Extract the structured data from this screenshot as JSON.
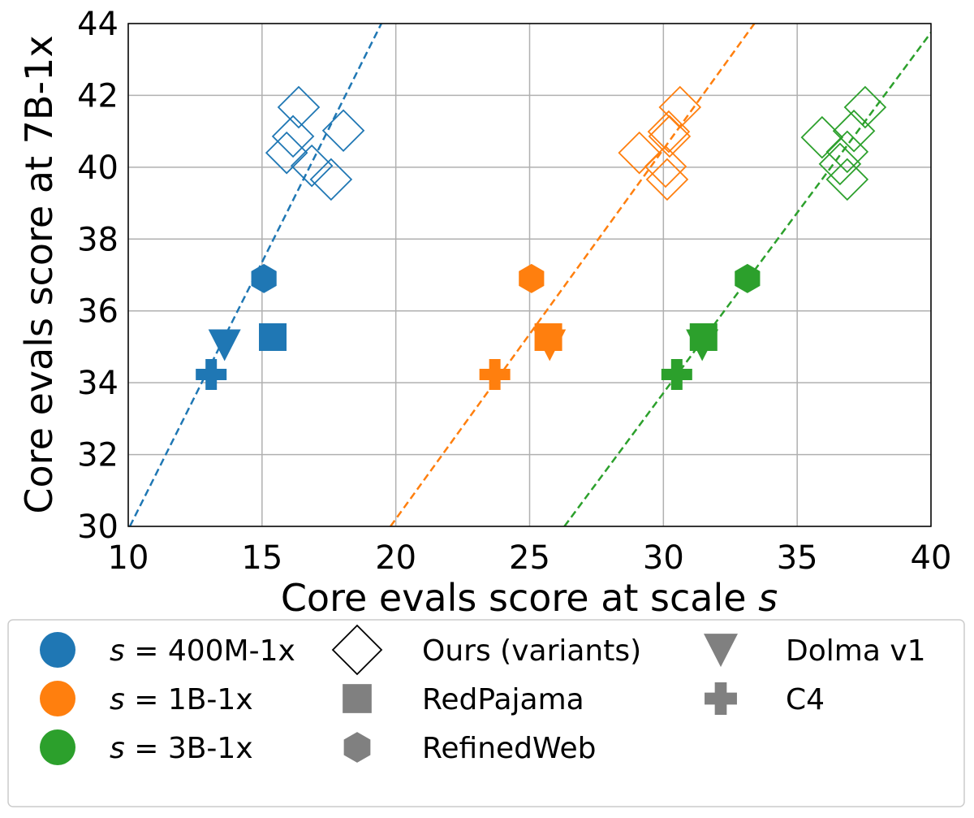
{
  "chart_data": {
    "type": "scatter",
    "xlabel": "Core evals score at scale ",
    "xlabel_var": "s",
    "ylabel": "Core evals score at 7B-1x",
    "xlim": [
      10,
      40
    ],
    "ylim": [
      30,
      44
    ],
    "xticks": [
      "10",
      "15",
      "20",
      "25",
      "30",
      "35",
      "40"
    ],
    "yticks": [
      "30",
      "32",
      "34",
      "36",
      "38",
      "40",
      "42",
      "44"
    ],
    "grid": true,
    "legend_placement": "bottom-outside",
    "scales": [
      {
        "label_var": "s",
        "label_rest": " = 400M-1x",
        "color": "#1f77b4",
        "fit_line": [
          [
            10.06,
            30
          ],
          [
            19.46,
            44
          ]
        ],
        "ours_variants": [
          [
            16.37,
            41.67
          ],
          [
            16.16,
            40.86
          ],
          [
            18.04,
            41.02
          ],
          [
            15.92,
            40.4
          ],
          [
            16.86,
            40.04
          ],
          [
            17.58,
            39.66
          ]
        ],
        "RedPajama": [
          15.4,
          35.27
        ],
        "RefinedWeb": [
          15.07,
          36.9
        ],
        "Dolma v1": [
          13.6,
          35.1
        ],
        "C4": [
          13.1,
          34.23
        ]
      },
      {
        "label_var": "s",
        "label_rest": " = 1B-1x",
        "color": "#ff7f0e",
        "fit_line": [
          [
            19.8,
            30
          ],
          [
            33.4,
            44
          ]
        ],
        "ours_variants": [
          [
            30.62,
            41.67
          ],
          [
            30.2,
            40.99
          ],
          [
            30.23,
            40.86
          ],
          [
            29.1,
            40.4
          ],
          [
            30.08,
            40.02
          ],
          [
            30.14,
            39.66
          ]
        ],
        "RedPajama": [
          25.7,
          35.27
        ],
        "RefinedWeb": [
          25.07,
          36.9
        ],
        "Dolma v1": [
          25.75,
          35.1
        ],
        "C4": [
          23.7,
          34.23
        ]
      },
      {
        "label_var": "s",
        "label_rest": " = 3B-1x",
        "color": "#2ca02c",
        "fit_line": [
          [
            26.3,
            30
          ],
          [
            40.0,
            43.75
          ]
        ],
        "ours_variants": [
          [
            37.54,
            41.67
          ],
          [
            37.12,
            41.01
          ],
          [
            35.93,
            40.83
          ],
          [
            36.87,
            40.43
          ],
          [
            36.6,
            40.09
          ],
          [
            36.87,
            39.66
          ]
        ],
        "RedPajama": [
          31.5,
          35.27
        ],
        "RefinedWeb": [
          33.14,
          36.9
        ],
        "Dolma v1": [
          31.45,
          35.1
        ],
        "C4": [
          30.5,
          34.23
        ]
      }
    ],
    "marker_legend": [
      {
        "label": "Ours (variants)",
        "marker": "diamond-open"
      },
      {
        "label": "RedPajama",
        "marker": "square"
      },
      {
        "label": "RefinedWeb",
        "marker": "hexagon"
      },
      {
        "label": "Dolma v1",
        "marker": "triangle-down"
      },
      {
        "label": "C4",
        "marker": "plus"
      }
    ],
    "legend_marker_color": "#808080"
  }
}
